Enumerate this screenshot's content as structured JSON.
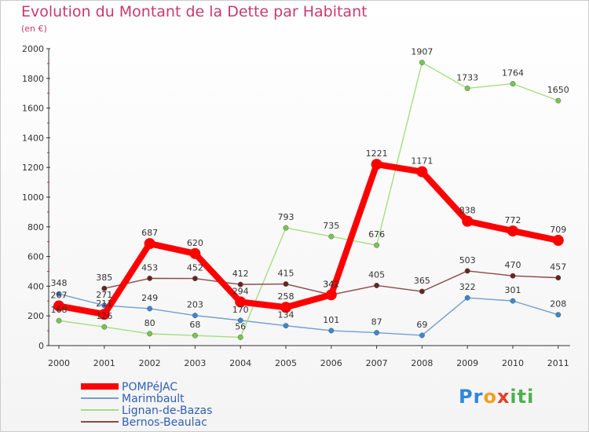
{
  "title": "Evolution du Montant de la Dette par Habitant",
  "subtitle": "(en €)",
  "logo": {
    "p1": "Pr",
    "p2": "o",
    "p3": "x",
    "p4": "iti"
  },
  "chart_data": {
    "type": "line",
    "x": [
      "2000",
      "2001",
      "2002",
      "2003",
      "2004",
      "2005",
      "2006",
      "2007",
      "2008",
      "2009",
      "2010",
      "2011"
    ],
    "ylim": [
      0,
      2000
    ],
    "yticks": [
      "0",
      "200",
      "400",
      "600",
      "800",
      "1000",
      "1200",
      "1400",
      "1600",
      "1800",
      "2000"
    ],
    "grid": false,
    "legend_placement": "bottom-left",
    "series": [
      {
        "name": "Marimbault",
        "color": "#6f9fd0",
        "point": "#3d86d1",
        "width": 1.4,
        "values": [
          348,
          271,
          249,
          203,
          170,
          134,
          101,
          87,
          69,
          322,
          301,
          208
        ]
      },
      {
        "name": "Lignan-de-Bazas",
        "color": "#a6dd85",
        "point": "#79c64f",
        "width": 1.4,
        "values": [
          168,
          126,
          80,
          68,
          56,
          793,
          735,
          676,
          1907,
          1733,
          1764,
          1650
        ]
      },
      {
        "name": "Bernos-Beaulac",
        "color": "#8a4a4a",
        "point": "#6a2222",
        "width": 1.4,
        "values": [
          null,
          385,
          453,
          452,
          412,
          415,
          342,
          405,
          365,
          503,
          470,
          457
        ]
      },
      {
        "name": "POMPéJAC",
        "color": "#ff0000",
        "point": "#ff0000",
        "width": 8,
        "values": [
          267,
          211,
          687,
          620,
          294,
          258,
          342,
          1221,
          1171,
          838,
          772,
          709
        ]
      }
    ],
    "labels": {
      "Marimbault": [
        "348",
        "271",
        "249",
        "203",
        "170",
        "134",
        "101",
        "87",
        "69",
        "322",
        "301",
        "208"
      ],
      "Lignan-de-Bazas": [
        "168",
        "126",
        "80",
        "68",
        "56",
        "793",
        "735",
        "676",
        "1907",
        "1733",
        "1764",
        "1650"
      ],
      "Bernos-Beaulac": [
        "",
        "385",
        "453",
        "452",
        "412",
        "415",
        "342",
        "405",
        "365",
        "503",
        "470",
        "457"
      ],
      "POMPéJAC": [
        "267",
        "211",
        "687",
        "620",
        "294",
        "258",
        "342",
        "1221",
        "1171",
        "838",
        "772",
        "709"
      ]
    },
    "legend": [
      "POMPéJAC",
      "Marimbault",
      "Lignan-de-Bazas",
      "Bernos-Beaulac"
    ]
  }
}
